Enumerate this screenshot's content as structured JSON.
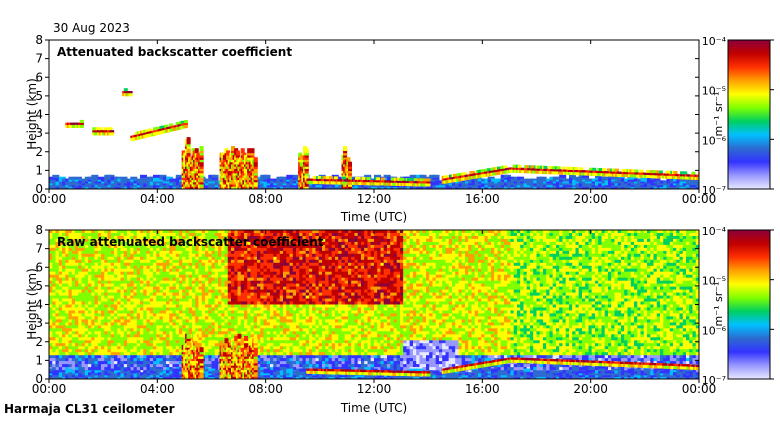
{
  "header": {
    "date": "30 Aug 2023"
  },
  "footer": {
    "station": "Harmaja CL31 ceilometer"
  },
  "colors": {
    "colormap": [
      "#e8e8ff",
      "#9898ff",
      "#3333ff",
      "#2d6bd0",
      "#00c0ff",
      "#00d060",
      "#80ff00",
      "#ffff00",
      "#ffa000",
      "#ff3000",
      "#c00000",
      "#8b003a"
    ],
    "ground_band": "#2a2aff",
    "axis": "#000000"
  },
  "chart_data": [
    {
      "type": "heatmap",
      "title": "Attenuated backscatter coefficient",
      "xlabel": "Time (UTC)",
      "ylabel": "Height (km)",
      "xlim_hours": [
        0,
        24
      ],
      "ylim_km": [
        0,
        8
      ],
      "xticks": [
        "00:00",
        "04:00",
        "08:00",
        "12:00",
        "16:00",
        "20:00",
        "00:00"
      ],
      "yticks": [
        "0",
        "1",
        "2",
        "3",
        "4",
        "5",
        "6",
        "7",
        "8"
      ],
      "colorbar": {
        "label": "m⁻¹ sr⁻¹",
        "ticks": [
          "10⁻⁴",
          "10⁻⁵",
          "10⁻⁶",
          "10⁻⁷"
        ],
        "range_log10": [
          -7,
          -4
        ]
      },
      "features": [
        {
          "name": "boundary layer aerosol",
          "t_start": 0,
          "t_end": 24,
          "top_km": 0.5
        },
        {
          "name": "elevated layer",
          "t_start": 0.6,
          "t_end": 1.2,
          "h_km": 3.4
        },
        {
          "name": "elevated layer",
          "t_start": 1.6,
          "t_end": 2.3,
          "h_km": 3.0
        },
        {
          "name": "elevated layer",
          "t_start": 2.7,
          "t_end": 3.0,
          "h_km": 5.1
        },
        {
          "name": "sloping layer",
          "t_start": 3.0,
          "t_end": 5.0,
          "h_start_km": 2.7,
          "h_end_km": 3.4
        },
        {
          "name": "cloud / precipitation",
          "t_start": 4.9,
          "t_end": 5.6,
          "h_km": 2.3
        },
        {
          "name": "cloud / precipitation",
          "t_start": 6.3,
          "t_end": 7.6,
          "h_km": 2.0
        },
        {
          "name": "cloud",
          "t_start": 9.2,
          "t_end": 9.5,
          "h_km": 1.9
        },
        {
          "name": "cloud",
          "t_start": 10.8,
          "t_end": 11.1,
          "h_km": 2.0
        },
        {
          "name": "descending layer",
          "t_start": 9.5,
          "t_end": 14.0,
          "h_start_km": 0.4,
          "h_end_km": 0.25
        },
        {
          "name": "rising layer",
          "t_start": 14.5,
          "t_end": 17.0,
          "h_start_km": 0.4,
          "h_end_km": 1.0
        },
        {
          "name": "descending layer",
          "t_start": 17.0,
          "t_end": 24.0,
          "h_start_km": 1.0,
          "h_end_km": 0.6
        }
      ]
    },
    {
      "type": "heatmap",
      "title": "Raw attenuated backscatter coefficient",
      "xlabel": "Time (UTC)",
      "ylabel": "Height (km)",
      "xlim_hours": [
        0,
        24
      ],
      "ylim_km": [
        0,
        8
      ],
      "xticks": [
        "00:00",
        "04:00",
        "08:00",
        "12:00",
        "16:00",
        "20:00",
        "00:00"
      ],
      "yticks": [
        "0",
        "1",
        "2",
        "3",
        "4",
        "5",
        "6",
        "7",
        "8"
      ],
      "colorbar": {
        "label": "m⁻¹ sr⁻¹",
        "ticks": [
          "10⁻⁴",
          "10⁻⁵",
          "10⁻⁶",
          "10⁻⁷"
        ],
        "range_log10": [
          -7,
          -4
        ]
      },
      "features": [
        {
          "name": "noise background",
          "t_start": 0,
          "t_end": 24
        },
        {
          "name": "high noise region",
          "t_start": 7,
          "t_end": 13,
          "h_km": 7.0
        },
        {
          "name": "cloud / precipitation",
          "t_start": 4.9,
          "t_end": 5.6,
          "h_km": 2.3
        },
        {
          "name": "cloud / precipitation",
          "t_start": 6.3,
          "t_end": 7.6,
          "h_km": 2.0
        },
        {
          "name": "descending layer",
          "t_start": 9.5,
          "t_end": 14.0,
          "h_start_km": 0.4,
          "h_end_km": 0.25
        },
        {
          "name": "rising layer",
          "t_start": 14.5,
          "t_end": 17.0,
          "h_start_km": 0.4,
          "h_end_km": 1.0
        },
        {
          "name": "descending layer",
          "t_start": 17.0,
          "t_end": 24.0,
          "h_start_km": 1.0,
          "h_end_km": 0.6
        }
      ]
    }
  ]
}
